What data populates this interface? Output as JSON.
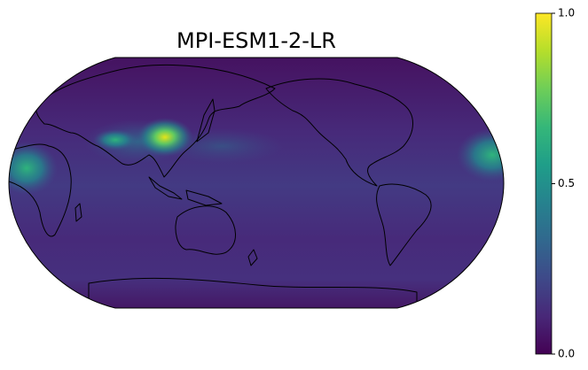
{
  "title": "MPI-ESM1-2-LR",
  "colorbar": {
    "lim": [
      0,
      1
    ],
    "ticks": [
      {
        "value": 0,
        "label": "0.0"
      },
      {
        "value": 0.5,
        "label": "0.5"
      },
      {
        "value": 1,
        "label": "1.0"
      }
    ],
    "colors": [
      "#440154",
      "#482878",
      "#3e4989",
      "#31688e",
      "#26828e",
      "#1f9e89",
      "#35b779",
      "#6ece58",
      "#b5de2b",
      "#fde725"
    ]
  }
}
